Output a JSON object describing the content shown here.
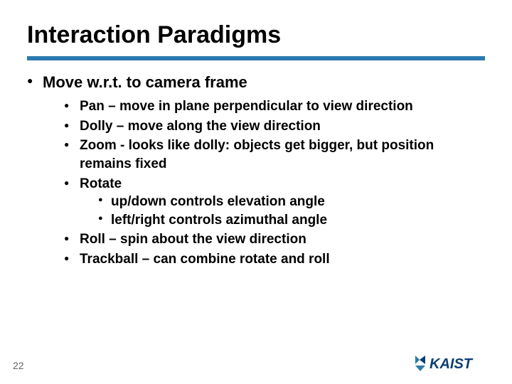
{
  "slide": {
    "title": "Interaction Paradigms",
    "underline_color": "#2a7ab0",
    "page_number": "22",
    "main_bullet": "Move w.r.t. to camera frame",
    "sub_bullets": [
      {
        "text": "Pan – move in plane perpendicular to view direction"
      },
      {
        "text": "Dolly – move along the view direction"
      },
      {
        "text": "Zoom - looks like dolly: objects get bigger, but position remains fixed"
      },
      {
        "text": "Rotate",
        "children": [
          "up/down controls elevation angle",
          "left/right controls azimuthal angle"
        ]
      },
      {
        "text": "Roll – spin about the view direction"
      },
      {
        "text": "Trackball – can combine rotate and roll"
      }
    ]
  },
  "logo": {
    "text": "KAIST",
    "text_color": "#0a3d77",
    "shape_colors": [
      "#2a7ab0",
      "#0a3d77"
    ]
  },
  "style": {
    "title_fontsize": 34,
    "body_fontsize": 19,
    "background": "#ffffff",
    "text_color": "#000000"
  }
}
